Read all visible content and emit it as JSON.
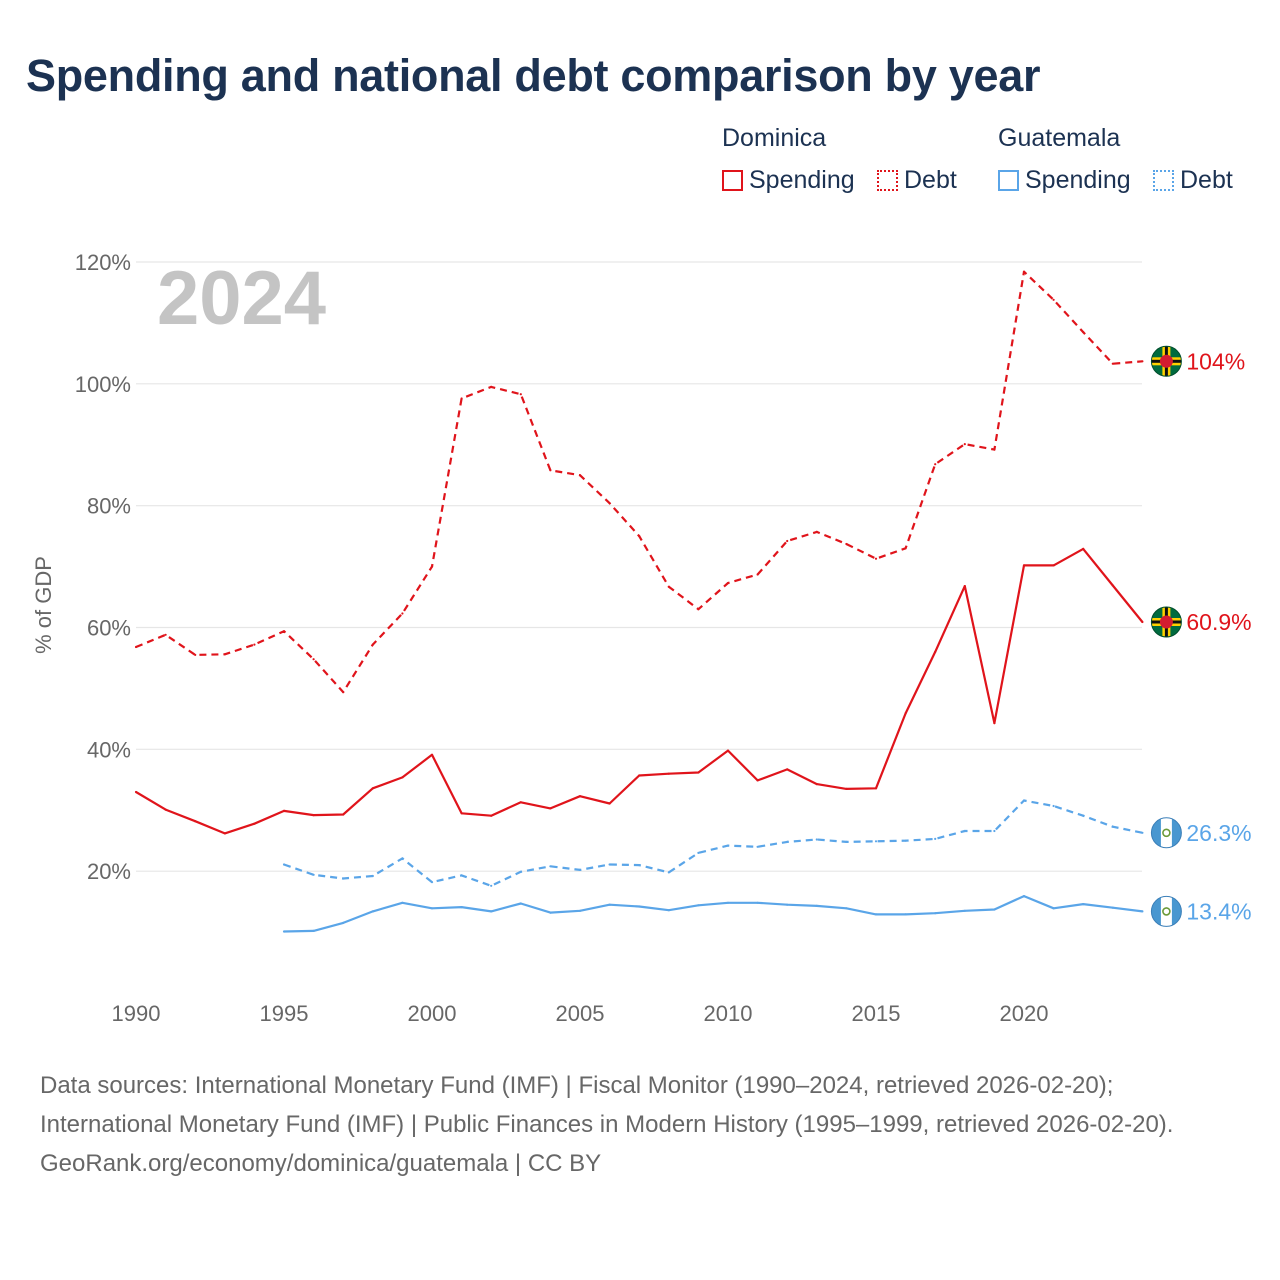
{
  "title": "Spending and national debt comparison by year",
  "legend": {
    "dominica": {
      "country": "Dominica",
      "spending": "Spending",
      "debt": "Debt"
    },
    "guatemala": {
      "country": "Guatemala",
      "spending": "Spending",
      "debt": "Debt"
    }
  },
  "colors": {
    "dominica": "#e0141b",
    "guatemala": "#5aa5e8",
    "year_watermark": "#c4c4c4"
  },
  "icons": {
    "dominica_flag": "dominica-flag-icon",
    "guatemala_flag": "guatemala-flag-icon"
  },
  "footer": {
    "sources": "Data sources: International Monetary Fund (IMF) | Fiscal Monitor (1990–2024, retrieved 2026-02-20); International Monetary Fund (IMF) | Public Finances in Modern History (1995–1999, retrieved 2026-02-20).",
    "credit": "GeoRank.org/economy/dominica/guatemala | CC BY"
  },
  "chart_data": {
    "type": "line",
    "year_label": "2024",
    "ylabel": "% of GDP",
    "ylim": [
      0,
      120
    ],
    "xlim": [
      1990,
      2024
    ],
    "y_ticks": [
      {
        "value": 20,
        "label": "20%"
      },
      {
        "value": 40,
        "label": "40%"
      },
      {
        "value": 60,
        "label": "60%"
      },
      {
        "value": 80,
        "label": "80%"
      },
      {
        "value": 100,
        "label": "100%"
      },
      {
        "value": 120,
        "label": "120%"
      }
    ],
    "x_ticks": [
      {
        "value": 1990,
        "label": "1990"
      },
      {
        "value": 1995,
        "label": "1995"
      },
      {
        "value": 2000,
        "label": "2000"
      },
      {
        "value": 2005,
        "label": "2005"
      },
      {
        "value": 2010,
        "label": "2010"
      },
      {
        "value": 2015,
        "label": "2015"
      },
      {
        "value": 2020,
        "label": "2020"
      }
    ],
    "series": [
      {
        "name": "Dominica Debt",
        "country": "dominica",
        "style": "dashed",
        "end_label": "104%",
        "x": [
          1990,
          1991,
          1992,
          1993,
          1994,
          1995,
          1996,
          1997,
          1998,
          1999,
          2000,
          2001,
          2002,
          2003,
          2004,
          2005,
          2006,
          2007,
          2008,
          2009,
          2010,
          2011,
          2012,
          2013,
          2014,
          2015,
          2016,
          2017,
          2018,
          2019,
          2020,
          2021,
          2022,
          2023,
          2024
        ],
        "y": [
          56.8,
          58.8,
          55.5,
          55.6,
          57.2,
          59.4,
          54.8,
          49.4,
          57.2,
          62.3,
          70.0,
          97.6,
          99.5,
          98.3,
          85.8,
          85.0,
          80.4,
          75.0,
          66.7,
          63.0,
          67.3,
          68.7,
          74.2,
          75.7,
          73.7,
          71.3,
          73.0,
          86.8,
          90.1,
          89.2,
          118.4,
          113.8,
          108.5,
          103.3,
          103.7
        ]
      },
      {
        "name": "Dominica Spending",
        "country": "dominica",
        "style": "solid",
        "end_label": "60.9%",
        "x": [
          1990,
          1991,
          1992,
          1993,
          1994,
          1995,
          1996,
          1997,
          1998,
          1999,
          2000,
          2001,
          2002,
          2003,
          2004,
          2005,
          2006,
          2007,
          2008,
          2009,
          2010,
          2011,
          2012,
          2013,
          2014,
          2015,
          2016,
          2017,
          2018,
          2019,
          2020,
          2021,
          2022,
          2023,
          2024
        ],
        "y": [
          33.0,
          30.1,
          28.2,
          26.2,
          27.8,
          29.9,
          29.2,
          29.3,
          33.6,
          35.4,
          39.1,
          29.5,
          29.1,
          31.3,
          30.3,
          32.3,
          31.1,
          35.7,
          36.0,
          36.2,
          39.8,
          34.9,
          36.7,
          34.3,
          33.5,
          33.6,
          45.9,
          56.0,
          66.8,
          44.3,
          70.2,
          70.2,
          72.9,
          66.9,
          60.9
        ]
      },
      {
        "name": "Guatemala Debt",
        "country": "guatemala",
        "style": "dashed",
        "end_label": "26.3%",
        "x": [
          1995,
          1996,
          1997,
          1998,
          1999,
          2000,
          2001,
          2002,
          2003,
          2004,
          2005,
          2006,
          2007,
          2008,
          2009,
          2010,
          2011,
          2012,
          2013,
          2014,
          2015,
          2016,
          2017,
          2018,
          2019,
          2020,
          2021,
          2022,
          2023,
          2024
        ],
        "y": [
          21.1,
          19.4,
          18.8,
          19.2,
          22.1,
          18.2,
          19.3,
          17.6,
          19.9,
          20.8,
          20.2,
          21.1,
          21.0,
          19.8,
          23.0,
          24.2,
          24.0,
          24.8,
          25.2,
          24.8,
          24.9,
          25.0,
          25.3,
          26.6,
          26.6,
          31.6,
          30.7,
          29.1,
          27.3,
          26.3
        ]
      },
      {
        "name": "Guatemala Spending",
        "country": "guatemala",
        "style": "solid",
        "end_label": "13.4%",
        "x": [
          1995,
          1996,
          1997,
          1998,
          1999,
          2000,
          2001,
          2002,
          2003,
          2004,
          2005,
          2006,
          2007,
          2008,
          2009,
          2010,
          2011,
          2012,
          2013,
          2014,
          2015,
          2016,
          2017,
          2018,
          2019,
          2020,
          2021,
          2022,
          2023,
          2024
        ],
        "y": [
          10.1,
          10.2,
          11.5,
          13.4,
          14.8,
          13.9,
          14.1,
          13.4,
          14.7,
          13.2,
          13.5,
          14.5,
          14.2,
          13.6,
          14.4,
          14.8,
          14.8,
          14.5,
          14.3,
          13.9,
          12.9,
          12.9,
          13.1,
          13.5,
          13.7,
          15.9,
          13.9,
          14.6,
          14.0,
          13.4
        ]
      }
    ]
  }
}
